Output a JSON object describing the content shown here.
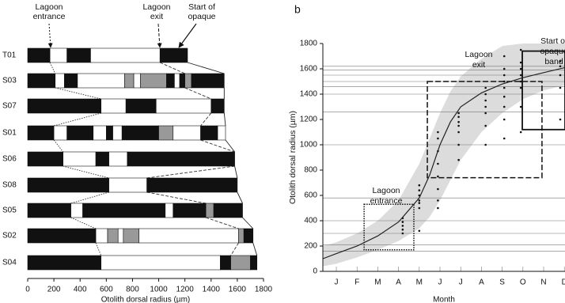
{
  "chart_data": [
    {
      "type": "bar",
      "categories": [
        "T01",
        "S03",
        "S07",
        "S01",
        "S06",
        "S08",
        "S05",
        "S02",
        "S04"
      ],
      "segments": [
        [
          {
            "start": 0,
            "end": 170,
            "color": "#111111"
          },
          {
            "start": 170,
            "end": 300,
            "color": "#ffffff"
          },
          {
            "start": 300,
            "end": 480,
            "color": "#111111"
          },
          {
            "start": 480,
            "end": 1010,
            "color": "#ffffff"
          },
          {
            "start": 1010,
            "end": 1220,
            "color": "#111111"
          }
        ],
        [
          {
            "start": 0,
            "end": 210,
            "color": "#111111"
          },
          {
            "start": 210,
            "end": 280,
            "color": "#ffffff"
          },
          {
            "start": 280,
            "end": 380,
            "color": "#111111"
          },
          {
            "start": 380,
            "end": 740,
            "color": "#ffffff"
          },
          {
            "start": 740,
            "end": 810,
            "color": "#999999"
          },
          {
            "start": 810,
            "end": 860,
            "color": "#ffffff"
          },
          {
            "start": 860,
            "end": 1060,
            "color": "#999999"
          },
          {
            "start": 1060,
            "end": 1120,
            "color": "#111111"
          },
          {
            "start": 1120,
            "end": 1160,
            "color": "#ffffff"
          },
          {
            "start": 1160,
            "end": 1200,
            "color": "#111111"
          },
          {
            "start": 1200,
            "end": 1250,
            "color": "#999999"
          },
          {
            "start": 1250,
            "end": 1500,
            "color": "#111111"
          }
        ],
        [
          {
            "start": 0,
            "end": 560,
            "color": "#111111"
          },
          {
            "start": 560,
            "end": 750,
            "color": "#ffffff"
          },
          {
            "start": 750,
            "end": 980,
            "color": "#111111"
          },
          {
            "start": 980,
            "end": 1400,
            "color": "#ffffff"
          },
          {
            "start": 1400,
            "end": 1500,
            "color": "#111111"
          }
        ],
        [
          {
            "start": 0,
            "end": 200,
            "color": "#111111"
          },
          {
            "start": 200,
            "end": 300,
            "color": "#ffffff"
          },
          {
            "start": 300,
            "end": 500,
            "color": "#111111"
          },
          {
            "start": 500,
            "end": 600,
            "color": "#ffffff"
          },
          {
            "start": 600,
            "end": 650,
            "color": "#111111"
          },
          {
            "start": 650,
            "end": 720,
            "color": "#ffffff"
          },
          {
            "start": 720,
            "end": 1000,
            "color": "#111111"
          },
          {
            "start": 1000,
            "end": 1110,
            "color": "#999999"
          },
          {
            "start": 1110,
            "end": 1320,
            "color": "#ffffff"
          },
          {
            "start": 1320,
            "end": 1450,
            "color": "#111111"
          },
          {
            "start": 1450,
            "end": 1510,
            "color": "#ffffff"
          }
        ],
        [
          {
            "start": 0,
            "end": 270,
            "color": "#111111"
          },
          {
            "start": 270,
            "end": 520,
            "color": "#ffffff"
          },
          {
            "start": 520,
            "end": 620,
            "color": "#111111"
          },
          {
            "start": 620,
            "end": 760,
            "color": "#ffffff"
          },
          {
            "start": 760,
            "end": 1580,
            "color": "#111111"
          }
        ],
        [
          {
            "start": 0,
            "end": 620,
            "color": "#111111"
          },
          {
            "start": 620,
            "end": 910,
            "color": "#ffffff"
          },
          {
            "start": 910,
            "end": 1600,
            "color": "#111111"
          }
        ],
        [
          {
            "start": 0,
            "end": 330,
            "color": "#111111"
          },
          {
            "start": 330,
            "end": 420,
            "color": "#ffffff"
          },
          {
            "start": 420,
            "end": 1050,
            "color": "#111111"
          },
          {
            "start": 1050,
            "end": 1110,
            "color": "#ffffff"
          },
          {
            "start": 1110,
            "end": 1360,
            "color": "#111111"
          },
          {
            "start": 1360,
            "end": 1420,
            "color": "#999999"
          },
          {
            "start": 1420,
            "end": 1640,
            "color": "#111111"
          }
        ],
        [
          {
            "start": 0,
            "end": 520,
            "color": "#111111"
          },
          {
            "start": 520,
            "end": 610,
            "color": "#ffffff"
          },
          {
            "start": 610,
            "end": 690,
            "color": "#999999"
          },
          {
            "start": 690,
            "end": 730,
            "color": "#ffffff"
          },
          {
            "start": 730,
            "end": 850,
            "color": "#999999"
          },
          {
            "start": 850,
            "end": 1610,
            "color": "#ffffff"
          },
          {
            "start": 1610,
            "end": 1650,
            "color": "#999999"
          },
          {
            "start": 1650,
            "end": 1720,
            "color": "#111111"
          }
        ],
        [
          {
            "start": 0,
            "end": 560,
            "color": "#111111"
          },
          {
            "start": 560,
            "end": 1470,
            "color": "#ffffff"
          },
          {
            "start": 1470,
            "end": 1550,
            "color": "#111111"
          },
          {
            "start": 1550,
            "end": 1700,
            "color": "#999999"
          },
          {
            "start": 1700,
            "end": 1750,
            "color": "#111111"
          }
        ]
      ],
      "lagoon_entrance": [
        170,
        210,
        560,
        200,
        270,
        620,
        330,
        520,
        560
      ],
      "lagoon_exit": [
        1010,
        1200,
        1400,
        1320,
        1580,
        910,
        1360,
        1610,
        1550
      ],
      "xlim": [
        0,
        1800
      ],
      "xticks": [
        0,
        200,
        400,
        600,
        800,
        1000,
        1200,
        1400,
        1600,
        1800
      ],
      "xlabel": "Otolith dorsal radius (µm)",
      "annotations": [
        [
          "Lagoon",
          "entrance"
        ],
        [
          "Lagoon",
          "exit"
        ],
        [
          "Start of",
          "opaque"
        ]
      ]
    },
    {
      "type": "scatter",
      "panel": "b",
      "categories": [
        "J",
        "F",
        "M",
        "A",
        "M",
        "J",
        "J",
        "A",
        "S",
        "O",
        "N",
        "D"
      ],
      "xlim": [
        -0.65,
        11.03
      ],
      "ylim": [
        0,
        1800
      ],
      "yticks": [
        0,
        200,
        400,
        600,
        800,
        1000,
        1200,
        1400,
        1600,
        1800
      ],
      "ylabel": "Otolith dorsal radius (µm)",
      "xlabel": "Month",
      "band": {
        "x": [
          -0.65,
          0,
          1,
          2,
          3,
          4,
          4.5,
          5,
          5.5,
          6,
          7,
          8,
          9,
          10,
          11.03
        ],
        "upper": [
          200,
          230,
          300,
          400,
          560,
          850,
          1050,
          1250,
          1420,
          1540,
          1680,
          1780,
          1800,
          1800,
          1800
        ],
        "lower": [
          40,
          60,
          110,
          170,
          240,
          340,
          430,
          560,
          720,
          880,
          1100,
          1250,
          1360,
          1430,
          1470
        ]
      },
      "curve": {
        "x": [
          -0.65,
          0,
          1,
          2,
          3,
          4,
          4.5,
          5,
          5.5,
          6,
          7,
          8,
          9,
          10,
          11.03
        ],
        "y": [
          100,
          140,
          200,
          280,
          390,
          580,
          760,
          1000,
          1180,
          1300,
          1410,
          1480,
          1530,
          1570,
          1610
        ]
      },
      "points": {
        "x": [
          3.2,
          3.2,
          3.2,
          3.2,
          3.2,
          4.0,
          4.0,
          4.0,
          4.0,
          4.0,
          4.0,
          4.0,
          4.9,
          4.9,
          4.9,
          4.9,
          4.9,
          4.9,
          4.9,
          4.9,
          5.9,
          5.9,
          5.9,
          5.9,
          5.9,
          5.9,
          5.9,
          7.2,
          7.2,
          7.2,
          7.2,
          7.2,
          7.2,
          7.2,
          8.1,
          8.1,
          8.1,
          8.1,
          8.1,
          8.1,
          8.1,
          8.1,
          8.1,
          8.9,
          8.9,
          8.9,
          8.9,
          8.9,
          8.9,
          8.9,
          8.9,
          10.8,
          10.8,
          10.8,
          10.8,
          10.8
        ],
        "y": [
          300,
          330,
          360,
          390,
          420,
          320,
          500,
          540,
          560,
          600,
          640,
          680,
          500,
          560,
          650,
          750,
          850,
          950,
          1050,
          1100,
          880,
          1000,
          1100,
          1150,
          1180,
          1220,
          1250,
          1000,
          1150,
          1250,
          1300,
          1350,
          1400,
          1450,
          1050,
          1200,
          1300,
          1380,
          1450,
          1500,
          1550,
          1600,
          1700,
          1100,
          1300,
          1450,
          1500,
          1550,
          1600,
          1650,
          1750,
          1200,
          1450,
          1550,
          1620,
          1660
        ]
      },
      "reference_lines": [
        160,
        210,
        300,
        400,
        580,
        1000,
        1260,
        1400,
        1460,
        1500,
        1550,
        1590,
        1620
      ],
      "boxes": [
        {
          "x": [
            1.34,
            3.74
          ],
          "y": [
            170,
            530
          ],
          "style": "dotted"
        },
        {
          "x": [
            4.39,
            9.92
          ],
          "y": [
            740,
            1500
          ],
          "style": "dashed"
        },
        {
          "x": [
            8.97,
            11.03
          ],
          "y": [
            1120,
            1740
          ],
          "style": "solid"
        }
      ],
      "annotations": [
        [
          "Lagoon",
          "entrance"
        ],
        [
          "Lagoon",
          "exit"
        ],
        [
          "Start of",
          "opaque",
          "band"
        ]
      ]
    }
  ]
}
